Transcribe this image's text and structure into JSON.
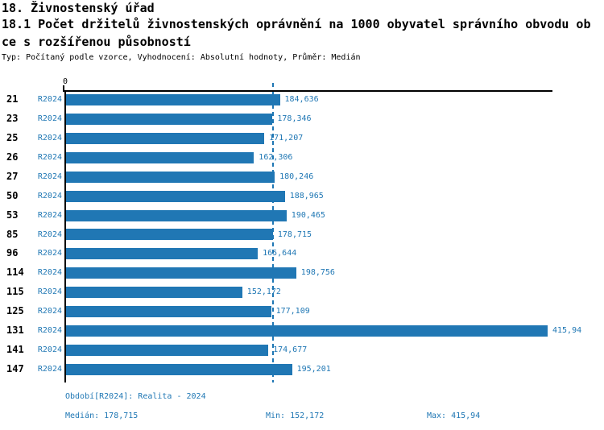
{
  "header": {
    "title_line1": "18. Živnostenský úřad",
    "title_line2a": "18.1 Počet držitelů živnostenských oprávnění na 1000 obyvatel správního obvodu ob",
    "title_line2b": "ce s rozšířenou působností",
    "meta": "Typ: Počítaný podle vzorce, Vyhodnocení: Absolutní hodnoty, Průměr: Medián"
  },
  "colors": {
    "bar_blue": "#2077b4",
    "text_blue": "#1f77b4",
    "axis_black": "#000000"
  },
  "axis": {
    "zero_label": "0"
  },
  "chart_data": {
    "type": "bar",
    "orientation": "horizontal",
    "title": "18.1 Počet držitelů živnostenských oprávnění na 1000 obyvatel správního obvodu obce s rozšířenou působností",
    "xlabel": "",
    "ylabel": "",
    "grid": false,
    "legend_position": "none",
    "xlim": [
      0,
      420
    ],
    "categories": [
      "21",
      "23",
      "25",
      "26",
      "27",
      "50",
      "53",
      "85",
      "96",
      "114",
      "115",
      "125",
      "131",
      "141",
      "147"
    ],
    "series": [
      {
        "name": "R2024",
        "values": [
          184.636,
          178.346,
          171.207,
          162.306,
          180.246,
          188.965,
          190.465,
          178.715,
          165.644,
          198.756,
          152.172,
          177.109,
          415.94,
          174.677,
          195.201
        ],
        "value_labels": [
          "184,636",
          "178,346",
          "171,207",
          "162,306",
          "180,246",
          "188,965",
          "190,465",
          "178,715",
          "165,644",
          "198,756",
          "152,172",
          "177,109",
          "415,94",
          "174,677",
          "195,201"
        ]
      }
    ],
    "median": 178.715,
    "min": 152.172,
    "max": 415.94
  },
  "footer": {
    "period": "Období[R2024]: Realita - 2024",
    "median": "Medián: 178,715",
    "min": "Min: 152,172",
    "max": "Max: 415,94"
  }
}
